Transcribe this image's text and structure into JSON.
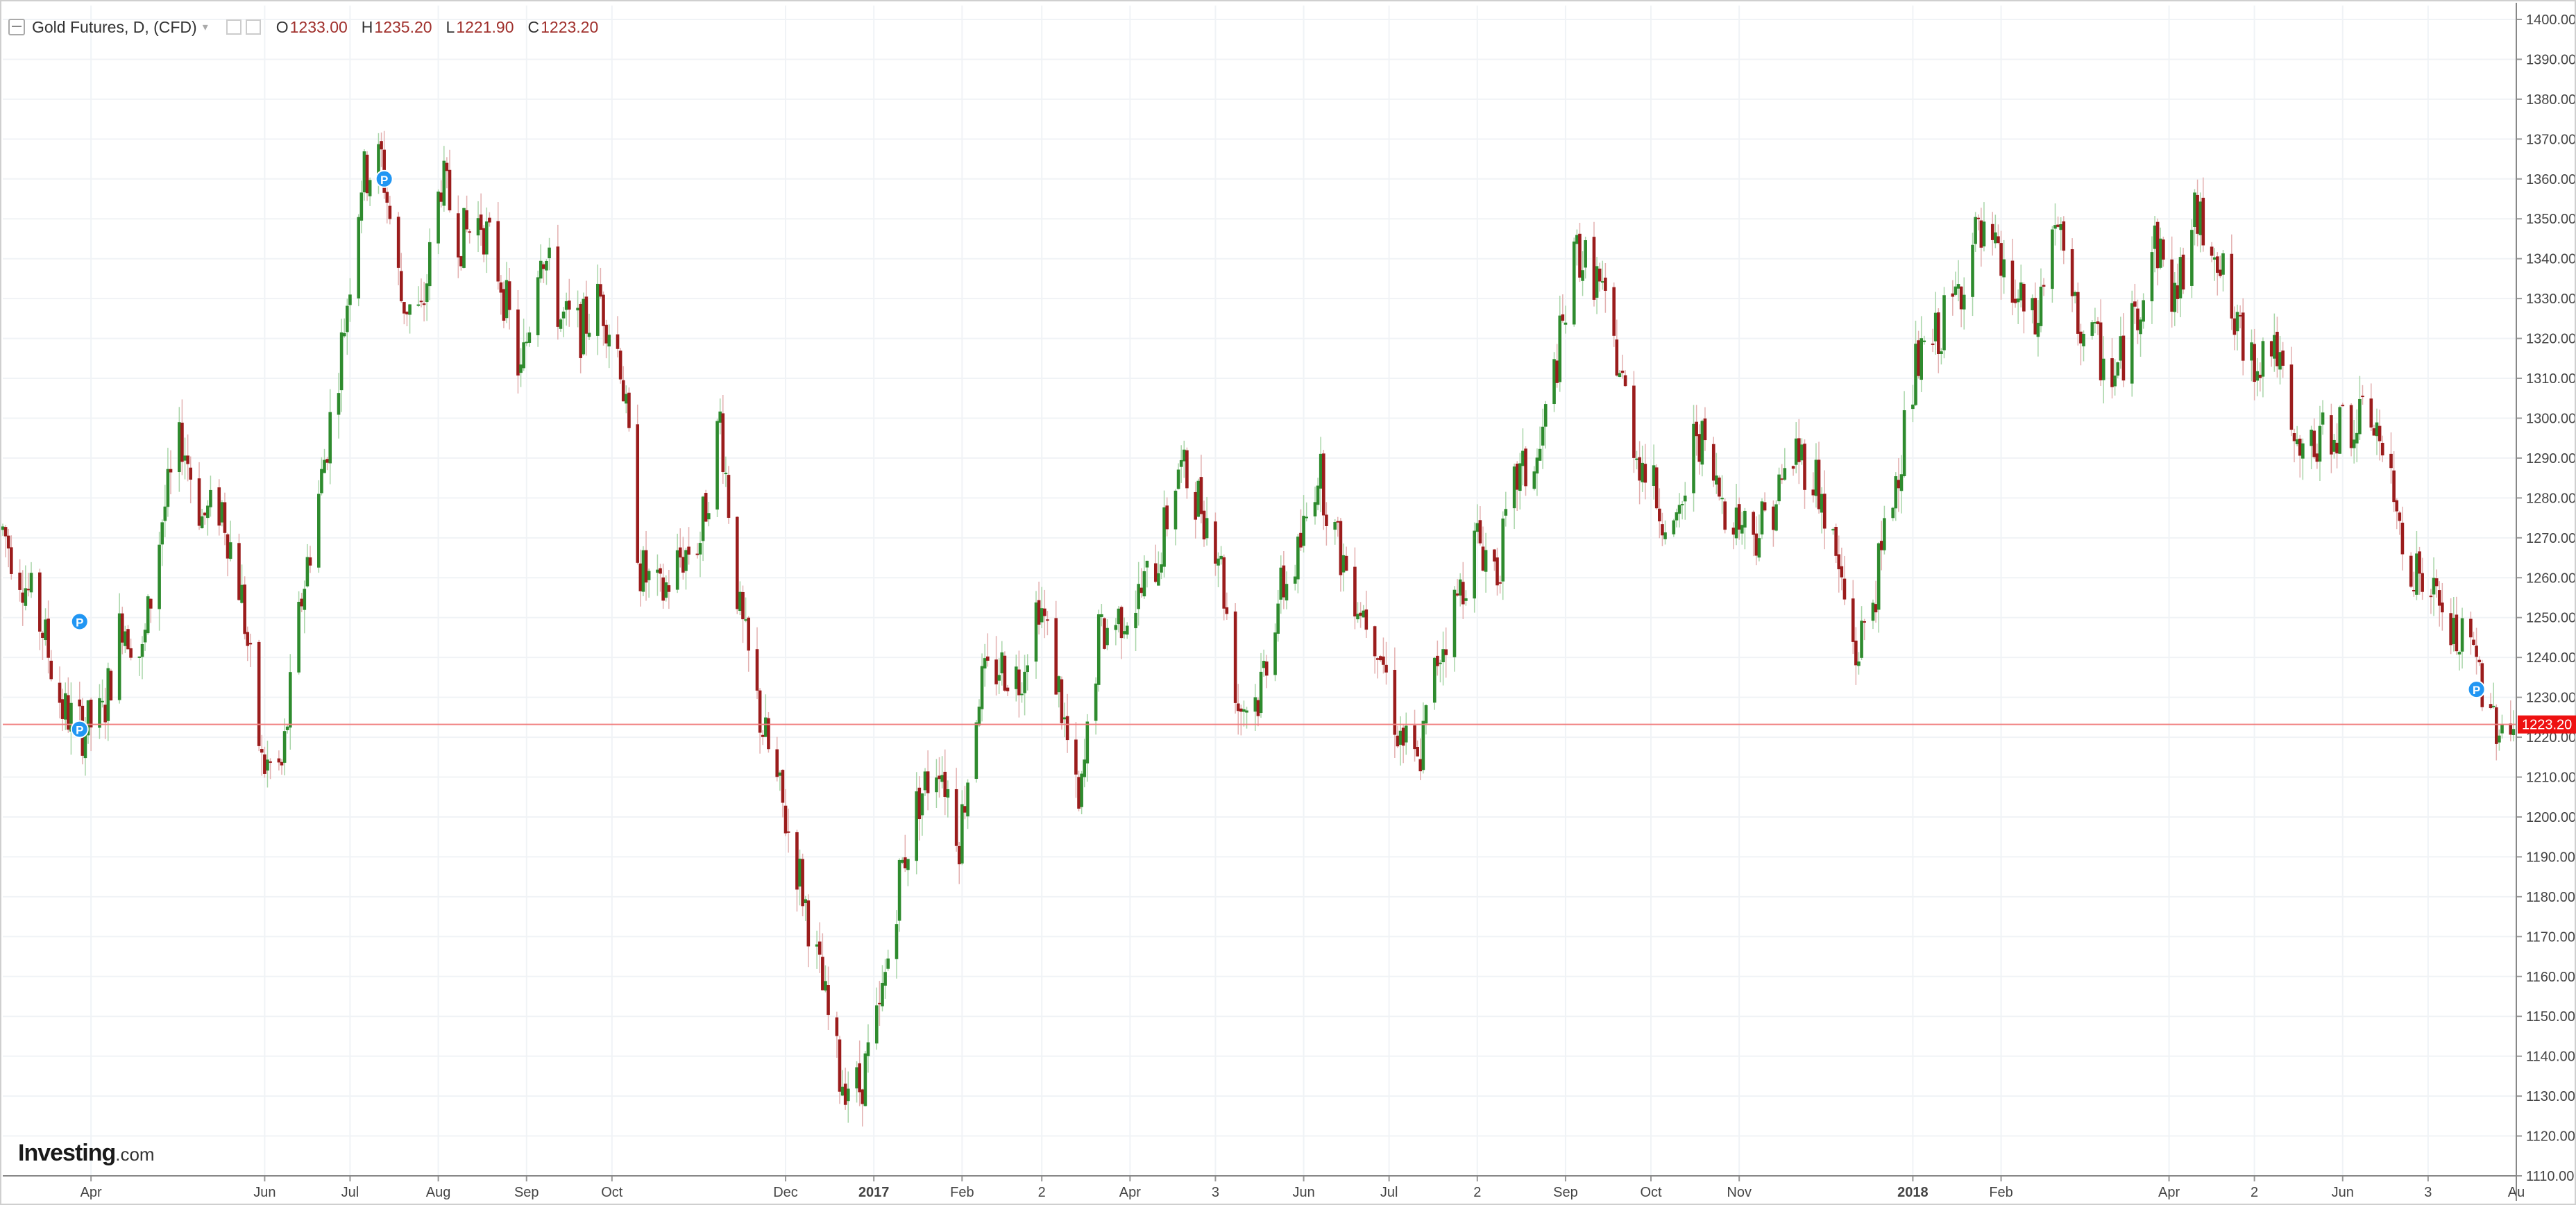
{
  "legend": {
    "title": "Gold Futures, D, (CFD)",
    "open_label": "O",
    "open_value": "1233.00",
    "high_label": "H",
    "high_value": "1235.20",
    "low_label": "L",
    "low_value": "1221.90",
    "close_label": "C",
    "close_value": "1223.20"
  },
  "logo": {
    "name": "Investing",
    "suffix": ".com"
  },
  "colors": {
    "up": "#2e8b2e",
    "down": "#9b1c1c",
    "price_line": "#f08080",
    "price_tag": "#ee1111",
    "marker": "#2196f3"
  },
  "chart_data": {
    "type": "candlestick",
    "y_axis": {
      "min": 1110,
      "max": 1400,
      "step": 10,
      "position": "right",
      "tick_labels": [
        "1400.00",
        "1390.00",
        "1380.00",
        "1370.00",
        "1360.00",
        "1350.00",
        "1340.00",
        "1330.00",
        "1320.00",
        "1310.00",
        "1300.00",
        "1290.00",
        "1280.00",
        "1270.00",
        "1260.00",
        "1250.00",
        "1240.00",
        "1230.00",
        "1220.00",
        "1210.00",
        "1200.00",
        "1190.00",
        "1180.00",
        "1170.00",
        "1160.00",
        "1150.00",
        "1140.00",
        "1130.00",
        "1120.00",
        "1110.00"
      ]
    },
    "x_axis": {
      "start": "2016-03-01",
      "end": "2018-08-01",
      "ticks": [
        {
          "date": "2016-04-01",
          "label": "Apr",
          "bold": false
        },
        {
          "date": "2016-06-01",
          "label": "Jun",
          "bold": false
        },
        {
          "date": "2016-07-01",
          "label": "Jul",
          "bold": false
        },
        {
          "date": "2016-08-01",
          "label": "Aug",
          "bold": false
        },
        {
          "date": "2016-09-01",
          "label": "Sep",
          "bold": false
        },
        {
          "date": "2016-10-01",
          "label": "Oct",
          "bold": false
        },
        {
          "date": "2016-12-01",
          "label": "Dec",
          "bold": false
        },
        {
          "date": "2017-01-01",
          "label": "2017",
          "bold": true
        },
        {
          "date": "2017-02-01",
          "label": "Feb",
          "bold": false
        },
        {
          "date": "2017-03-01",
          "label": "2",
          "bold": false
        },
        {
          "date": "2017-04-01",
          "label": "Apr",
          "bold": false
        },
        {
          "date": "2017-05-01",
          "label": "3",
          "bold": false
        },
        {
          "date": "2017-06-01",
          "label": "Jun",
          "bold": false
        },
        {
          "date": "2017-07-01",
          "label": "Jul",
          "bold": false
        },
        {
          "date": "2017-08-01",
          "label": "2",
          "bold": false
        },
        {
          "date": "2017-09-01",
          "label": "Sep",
          "bold": false
        },
        {
          "date": "2017-10-01",
          "label": "Oct",
          "bold": false
        },
        {
          "date": "2017-11-01",
          "label": "Nov",
          "bold": false
        },
        {
          "date": "2018-01-01",
          "label": "2018",
          "bold": true
        },
        {
          "date": "2018-02-01",
          "label": "Feb",
          "bold": false
        },
        {
          "date": "2018-04-01",
          "label": "Apr",
          "bold": false
        },
        {
          "date": "2018-05-01",
          "label": "2",
          "bold": false
        },
        {
          "date": "2018-06-01",
          "label": "Jun",
          "bold": false
        },
        {
          "date": "2018-07-01",
          "label": "3",
          "bold": false
        },
        {
          "date": "2018-08-01",
          "label": "Au",
          "bold": false
        }
      ]
    },
    "current_price": 1223.2,
    "current_price_label": "1223.20",
    "markers": [
      {
        "date": "2016-03-28",
        "price": 1249,
        "label": "P"
      },
      {
        "date": "2016-03-28",
        "price": 1222,
        "label": "P"
      },
      {
        "date": "2016-07-13",
        "price": 1360,
        "label": "P"
      },
      {
        "date": "2018-07-18",
        "price": 1232,
        "label": "P"
      }
    ],
    "price_path": [
      [
        "2016-03-01",
        1272
      ],
      [
        "2016-03-08",
        1260
      ],
      [
        "2016-03-15",
        1247
      ],
      [
        "2016-03-22",
        1227
      ],
      [
        "2016-03-29",
        1222
      ],
      [
        "2016-04-05",
        1225
      ],
      [
        "2016-04-12",
        1250
      ],
      [
        "2016-04-19",
        1240
      ],
      [
        "2016-04-26",
        1275
      ],
      [
        "2016-05-03",
        1295
      ],
      [
        "2016-05-10",
        1275
      ],
      [
        "2016-05-17",
        1278
      ],
      [
        "2016-05-24",
        1255
      ],
      [
        "2016-05-31",
        1213
      ],
      [
        "2016-06-07",
        1212
      ],
      [
        "2016-06-14",
        1255
      ],
      [
        "2016-06-21",
        1285
      ],
      [
        "2016-06-28",
        1318
      ],
      [
        "2016-07-05",
        1360
      ],
      [
        "2016-07-12",
        1365
      ],
      [
        "2016-07-19",
        1330
      ],
      [
        "2016-07-26",
        1325
      ],
      [
        "2016-08-02",
        1360
      ],
      [
        "2016-08-09",
        1345
      ],
      [
        "2016-08-16",
        1350
      ],
      [
        "2016-08-23",
        1335
      ],
      [
        "2016-08-30",
        1310
      ],
      [
        "2016-09-06",
        1345
      ],
      [
        "2016-09-13",
        1325
      ],
      [
        "2016-09-20",
        1322
      ],
      [
        "2016-09-27",
        1330
      ],
      [
        "2016-10-04",
        1315
      ],
      [
        "2016-10-11",
        1262
      ],
      [
        "2016-10-18",
        1255
      ],
      [
        "2016-10-25",
        1265
      ],
      [
        "2016-11-01",
        1270
      ],
      [
        "2016-11-08",
        1300
      ],
      [
        "2016-11-15",
        1250
      ],
      [
        "2016-11-22",
        1225
      ],
      [
        "2016-11-29",
        1205
      ],
      [
        "2016-12-06",
        1185
      ],
      [
        "2016-12-13",
        1160
      ],
      [
        "2016-12-20",
        1135
      ],
      [
        "2016-12-27",
        1132
      ],
      [
        "2017-01-03",
        1150
      ],
      [
        "2017-01-10",
        1185
      ],
      [
        "2017-01-17",
        1205
      ],
      [
        "2017-01-24",
        1215
      ],
      [
        "2017-01-31",
        1195
      ],
      [
        "2017-02-07",
        1232
      ],
      [
        "2017-02-14",
        1238
      ],
      [
        "2017-02-21",
        1235
      ],
      [
        "2017-02-28",
        1255
      ],
      [
        "2017-03-07",
        1232
      ],
      [
        "2017-03-14",
        1200
      ],
      [
        "2017-03-21",
        1245
      ],
      [
        "2017-03-28",
        1250
      ],
      [
        "2017-04-04",
        1255
      ],
      [
        "2017-04-11",
        1265
      ],
      [
        "2017-04-18",
        1288
      ],
      [
        "2017-04-25",
        1280
      ],
      [
        "2017-05-02",
        1268
      ],
      [
        "2017-05-09",
        1228
      ],
      [
        "2017-05-16",
        1230
      ],
      [
        "2017-05-23",
        1255
      ],
      [
        "2017-05-30",
        1265
      ],
      [
        "2017-06-06",
        1288
      ],
      [
        "2017-06-13",
        1268
      ],
      [
        "2017-06-20",
        1255
      ],
      [
        "2017-06-27",
        1245
      ],
      [
        "2017-07-04",
        1222
      ],
      [
        "2017-07-11",
        1212
      ],
      [
        "2017-07-18",
        1240
      ],
      [
        "2017-07-25",
        1255
      ],
      [
        "2017-08-01",
        1270
      ],
      [
        "2017-08-08",
        1262
      ],
      [
        "2017-08-15",
        1285
      ],
      [
        "2017-08-22",
        1288
      ],
      [
        "2017-08-29",
        1315
      ],
      [
        "2017-09-05",
        1342
      ],
      [
        "2017-09-12",
        1335
      ],
      [
        "2017-09-19",
        1315
      ],
      [
        "2017-09-26",
        1292
      ],
      [
        "2017-10-03",
        1280
      ],
      [
        "2017-10-10",
        1270
      ],
      [
        "2017-10-17",
        1298
      ],
      [
        "2017-10-24",
        1282
      ],
      [
        "2017-10-31",
        1275
      ],
      [
        "2017-11-07",
        1272
      ],
      [
        "2017-11-14",
        1280
      ],
      [
        "2017-11-21",
        1292
      ],
      [
        "2017-11-28",
        1285
      ],
      [
        "2017-12-05",
        1265
      ],
      [
        "2017-12-12",
        1240
      ],
      [
        "2017-12-19",
        1258
      ],
      [
        "2017-12-26",
        1285
      ],
      [
        "2018-01-02",
        1312
      ],
      [
        "2018-01-09",
        1320
      ],
      [
        "2018-01-16",
        1330
      ],
      [
        "2018-01-23",
        1345
      ],
      [
        "2018-01-30",
        1340
      ],
      [
        "2018-02-06",
        1330
      ],
      [
        "2018-02-13",
        1322
      ],
      [
        "2018-02-20",
        1350
      ],
      [
        "2018-02-27",
        1325
      ],
      [
        "2018-03-06",
        1318
      ],
      [
        "2018-03-13",
        1310
      ],
      [
        "2018-03-20",
        1325
      ],
      [
        "2018-03-27",
        1345
      ],
      [
        "2018-04-03",
        1330
      ],
      [
        "2018-04-10",
        1350
      ],
      [
        "2018-04-17",
        1345
      ],
      [
        "2018-04-24",
        1322
      ],
      [
        "2018-05-01",
        1315
      ],
      [
        "2018-05-08",
        1320
      ],
      [
        "2018-05-15",
        1290
      ],
      [
        "2018-05-22",
        1292
      ],
      [
        "2018-05-29",
        1298
      ],
      [
        "2018-06-05",
        1298
      ],
      [
        "2018-06-12",
        1300
      ],
      [
        "2018-06-19",
        1278
      ],
      [
        "2018-06-26",
        1262
      ],
      [
        "2018-07-03",
        1255
      ],
      [
        "2018-07-10",
        1245
      ],
      [
        "2018-07-17",
        1240
      ],
      [
        "2018-07-24",
        1225
      ],
      [
        "2018-07-31",
        1223
      ]
    ]
  }
}
